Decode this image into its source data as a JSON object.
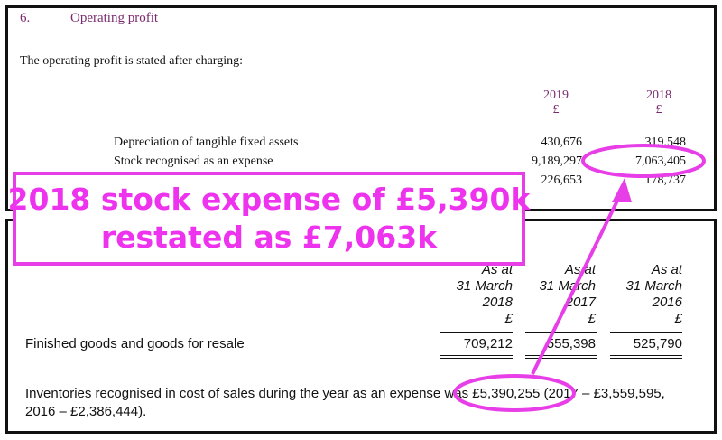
{
  "note": {
    "number": "6.",
    "title": "Operating profit",
    "intro": "The operating profit is stated after charging:",
    "years": [
      {
        "year": "2019",
        "currency": "£"
      },
      {
        "year": "2018",
        "currency": "£"
      }
    ],
    "rows": [
      {
        "label": "Depreciation of tangible fixed assets",
        "v2019": "430,676",
        "v2018": "319,548"
      },
      {
        "label": "Stock recognised as an expense",
        "v2019": "9,189,297",
        "v2018": "7,063,405"
      },
      {
        "label": "",
        "v2019": "226,653",
        "v2018": "178,737"
      }
    ]
  },
  "inventory": {
    "headers": [
      {
        "as_at": "As at",
        "day_month": "31 March",
        "year": "2018",
        "currency": "£"
      },
      {
        "as_at": "As at",
        "day_month": "31 March",
        "year": "2017",
        "currency": "£"
      },
      {
        "as_at": "As at",
        "day_month": "31 March",
        "year": "2016",
        "currency": "£"
      }
    ],
    "row_label": "Finished goods and goods for resale",
    "values": [
      "709,212",
      "555,398",
      "525,790"
    ],
    "note_text": "Inventories recognised in cost of sales during the year as an expense was £5,390,255 (2017 – £3,559,595, 2016 – £2,386,444)."
  },
  "callout": {
    "line1": "2018 stock expense of £5,390k",
    "line2": "restated as £7,063k",
    "color": "#ee33ee"
  }
}
